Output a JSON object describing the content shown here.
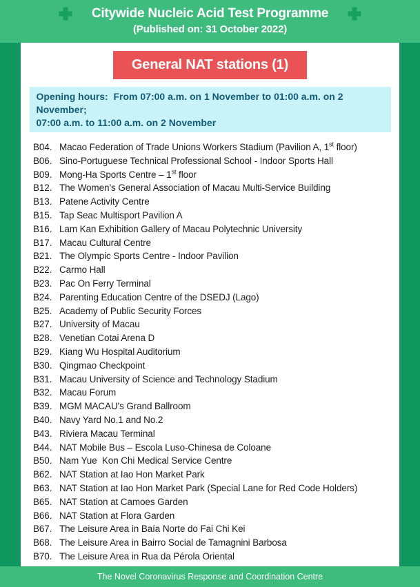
{
  "header": {
    "title": "Citywide Nucleic Acid Test Programme",
    "subtitle": "(Published on: 31 October 2022)",
    "left_icon": "medical-cross-icon",
    "right_icon": "medical-cross-icon",
    "bg_color": "#3dbc7d",
    "cross_color": "#17a05f",
    "text_color": "#ffffff"
  },
  "section": {
    "title": "General NAT stations (1)",
    "bg_color": "#ea5356",
    "text_color": "#ffffff"
  },
  "opening_hours": {
    "line1": "Opening hours:  From 07:00 a.m. on 1 November to 01:00 a.m. on 2 November;",
    "line2": "07:00 a.m. to 11:00 a.m. on 2 November",
    "bg_color": "#c9f3f8",
    "text_color": "#135c78"
  },
  "stations": [
    {
      "code": "B04.",
      "name_pre": "Macao Federation of Trade Unions Workers Stadium (Pavilion A, 1",
      "name_sup": "st",
      "name_post": " floor)"
    },
    {
      "code": "B06.",
      "name_pre": "Sino-Portuguese Technical Professional School - Indoor Sports Hall"
    },
    {
      "code": "B09.",
      "name_pre": "Mong-Ha Sports Centre – 1",
      "name_sup": "st",
      "name_post": " floor"
    },
    {
      "code": "B12.",
      "name_pre": "The Women’s General Association of Macau Multi-Service Building"
    },
    {
      "code": "B13.",
      "name_pre": "Patene Activity Centre"
    },
    {
      "code": "B15.",
      "name_pre": "Tap Seac Multisport Pavilion A"
    },
    {
      "code": "B16.",
      "name_pre": "Lam Kan Exhibition Gallery of Macau Polytechnic University"
    },
    {
      "code": "B17.",
      "name_pre": "Macau Cultural Centre"
    },
    {
      "code": "B21.",
      "name_pre": "The Olympic Sports Centre - Indoor Pavilion"
    },
    {
      "code": "B22.",
      "name_pre": "Carmo Hall"
    },
    {
      "code": "B23.",
      "name_pre": "Pac On Ferry Terminal"
    },
    {
      "code": "B24.",
      "name_pre": "Parenting Education Centre of the DSEDJ (Lago)"
    },
    {
      "code": "B25.",
      "name_pre": "Academy of Public Security Forces"
    },
    {
      "code": "B27.",
      "name_pre": "University of Macau"
    },
    {
      "code": "B28.",
      "name_pre": "Venetian Cotai Arena D"
    },
    {
      "code": "B29.",
      "name_pre": "Kiang Wu Hospital Auditorium"
    },
    {
      "code": "B30.",
      "name_pre": "Qingmao Checkpoint"
    },
    {
      "code": "B31.",
      "name_pre": "Macau University of Science and Technology Stadium"
    },
    {
      "code": "B32.",
      "name_pre": "Macau Forum"
    },
    {
      "code": "B39.",
      "name_pre": "MGM MACAU's Grand Ballroom"
    },
    {
      "code": "B40.",
      "name_pre": "Navy Yard No.1 and No.2"
    },
    {
      "code": "B43.",
      "name_pre": "Riviera Macau Terminal"
    },
    {
      "code": "B44.",
      "name_pre": "NAT Mobile Bus – Escola Luso-Chinesa de Coloane"
    },
    {
      "code": "B50.",
      "name_pre": "Nam Yue  Kon Chi Medical Service Centre"
    },
    {
      "code": "B62.",
      "name_pre": "NAT Station at Iao Hon Market Park"
    },
    {
      "code": "B63.",
      "name_pre": "NAT Station at Iao Hon Market Park (Special Lane for Red Code Holders)"
    },
    {
      "code": "B65.",
      "name_pre": "NAT Station at Camoes Garden"
    },
    {
      "code": "B66.",
      "name_pre": "NAT Station at Flora Garden"
    },
    {
      "code": "B67.",
      "name_pre": "The Leisure Area in Baía Norte do Fai Chi Kei"
    },
    {
      "code": "B68.",
      "name_pre": "The Leisure Area in Bairro Social de Tamagnini Barbosa"
    },
    {
      "code": "B70.",
      "name_pre": "The Leisure Area in Rua da Pérola Oriental"
    }
  ],
  "footer": {
    "text": "The Novel Coronavirus Response and Coordination Centre",
    "bg_color": "#3dbc7d",
    "text_color": "#ffffff"
  },
  "colors": {
    "side_strip_green": "#10975f",
    "panel_white": "#ffffff",
    "body_text": "#1d1d1f"
  }
}
